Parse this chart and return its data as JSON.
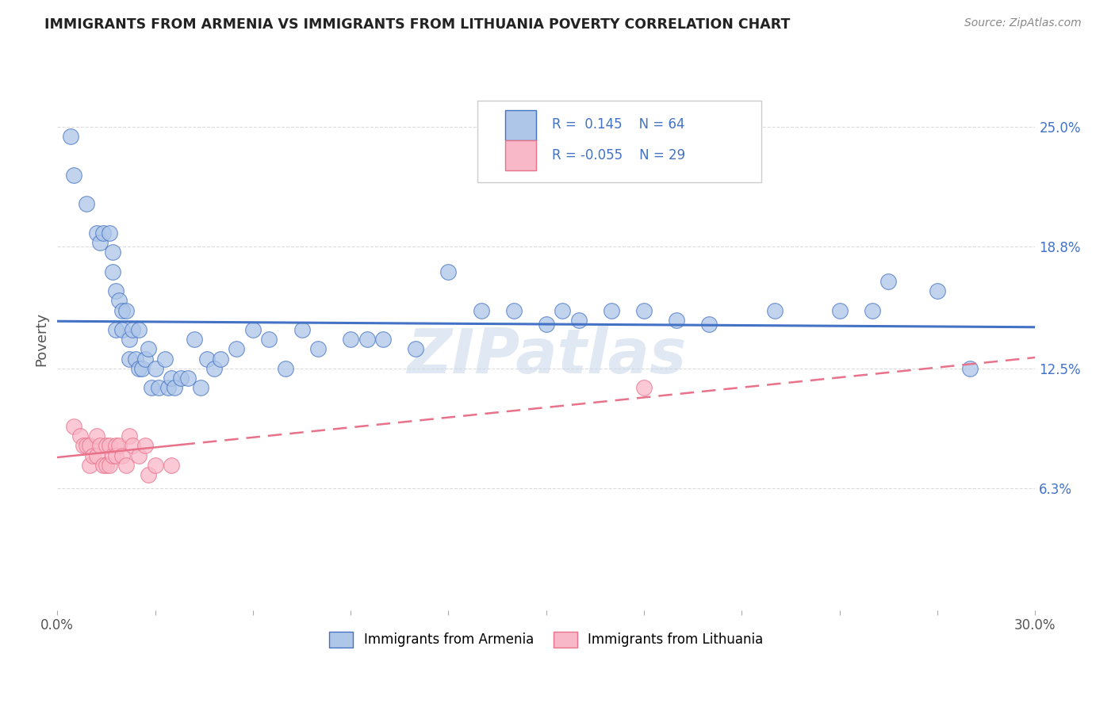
{
  "title": "IMMIGRANTS FROM ARMENIA VS IMMIGRANTS FROM LITHUANIA POVERTY CORRELATION CHART",
  "source": "Source: ZipAtlas.com",
  "ylabel": "Poverty",
  "right_yticks": [
    "25.0%",
    "18.8%",
    "12.5%",
    "6.3%"
  ],
  "right_ytick_vals": [
    0.25,
    0.188,
    0.125,
    0.063
  ],
  "xmin": 0.0,
  "xmax": 0.3,
  "ymin": 0.0,
  "ymax": 0.28,
  "R_armenia": 0.145,
  "N_armenia": 64,
  "R_lithuania": -0.055,
  "N_lithuania": 29,
  "color_armenia": "#aec6e8",
  "color_lithuania": "#f9b8c8",
  "line_color_armenia": "#4472C4",
  "line_color_lithuania": "#e8728a",
  "legend_box_color_armenia": "#aec6e8",
  "legend_box_color_lithuania": "#f9b8c8",
  "background_color": "#ffffff",
  "grid_color": "#cccccc",
  "title_color": "#222222",
  "watermark_color": "#c8d8ea",
  "armenia_x": [
    0.004,
    0.005,
    0.009,
    0.012,
    0.013,
    0.014,
    0.016,
    0.017,
    0.017,
    0.018,
    0.018,
    0.019,
    0.02,
    0.02,
    0.021,
    0.022,
    0.022,
    0.023,
    0.024,
    0.025,
    0.025,
    0.026,
    0.027,
    0.028,
    0.029,
    0.03,
    0.031,
    0.033,
    0.034,
    0.035,
    0.036,
    0.038,
    0.04,
    0.042,
    0.044,
    0.046,
    0.048,
    0.05,
    0.055,
    0.06,
    0.065,
    0.07,
    0.075,
    0.08,
    0.09,
    0.095,
    0.1,
    0.11,
    0.12,
    0.13,
    0.14,
    0.15,
    0.155,
    0.16,
    0.17,
    0.18,
    0.19,
    0.2,
    0.22,
    0.24,
    0.25,
    0.255,
    0.27,
    0.28
  ],
  "armenia_y": [
    0.245,
    0.225,
    0.21,
    0.195,
    0.19,
    0.195,
    0.195,
    0.185,
    0.175,
    0.165,
    0.145,
    0.16,
    0.155,
    0.145,
    0.155,
    0.14,
    0.13,
    0.145,
    0.13,
    0.145,
    0.125,
    0.125,
    0.13,
    0.135,
    0.115,
    0.125,
    0.115,
    0.13,
    0.115,
    0.12,
    0.115,
    0.12,
    0.12,
    0.14,
    0.115,
    0.13,
    0.125,
    0.13,
    0.135,
    0.145,
    0.14,
    0.125,
    0.145,
    0.135,
    0.14,
    0.14,
    0.14,
    0.135,
    0.175,
    0.155,
    0.155,
    0.148,
    0.155,
    0.15,
    0.155,
    0.155,
    0.15,
    0.148,
    0.155,
    0.155,
    0.155,
    0.17,
    0.165,
    0.125
  ],
  "lithuania_x": [
    0.005,
    0.007,
    0.008,
    0.009,
    0.01,
    0.01,
    0.011,
    0.012,
    0.012,
    0.013,
    0.014,
    0.015,
    0.015,
    0.016,
    0.016,
    0.017,
    0.018,
    0.018,
    0.019,
    0.02,
    0.021,
    0.022,
    0.023,
    0.025,
    0.027,
    0.028,
    0.03,
    0.035,
    0.18
  ],
  "lithuania_y": [
    0.095,
    0.09,
    0.085,
    0.085,
    0.085,
    0.075,
    0.08,
    0.09,
    0.08,
    0.085,
    0.075,
    0.085,
    0.075,
    0.085,
    0.075,
    0.08,
    0.085,
    0.08,
    0.085,
    0.08,
    0.075,
    0.09,
    0.085,
    0.08,
    0.085,
    0.07,
    0.075,
    0.075,
    0.115
  ]
}
